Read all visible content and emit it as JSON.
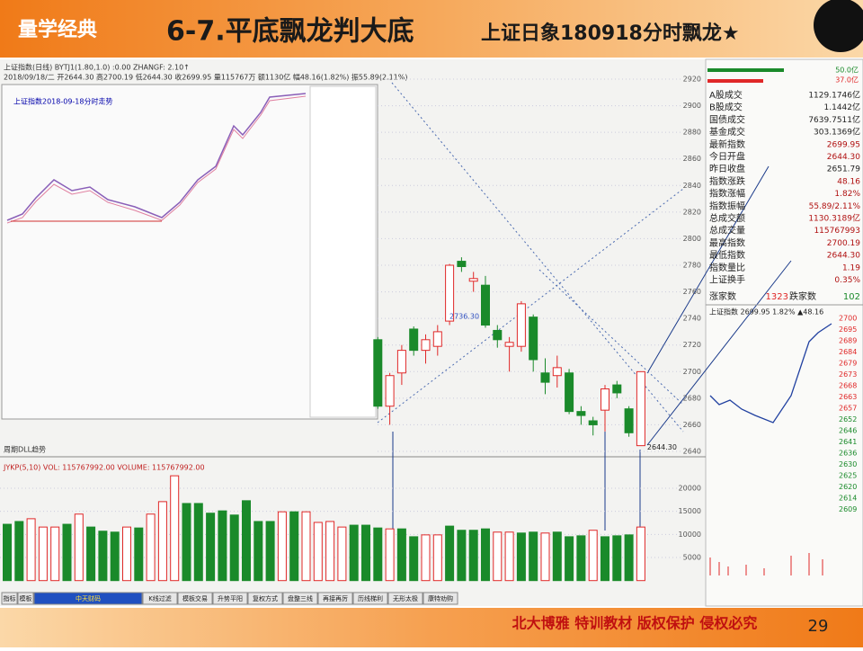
{
  "header": {
    "logo": "量学经典",
    "title": "6-7.平底飘龙判大底",
    "subtitle": "上证日象180918分时飘龙★"
  },
  "kline": {
    "info1": "上证指数(日线) BYTJ1(1.80,1.0) :0.00  ZHANGF: 2.10↑",
    "info2": "2018/09/18/二 开2644.30 高2700.19 低2644.30 收2699.95 量115767万 额1130亿 幅48.16(1.82%) 振55.89(2.11%)",
    "ylim": [
      2640,
      2920
    ],
    "yticks": [
      2640,
      2660,
      2680,
      2700,
      2720,
      2740,
      2760,
      2780,
      2800,
      2820,
      2840,
      2860,
      2880,
      2900,
      2920
    ],
    "candles": [
      {
        "open": 2724,
        "close": 2674,
        "high": 2726,
        "low": 2672
      },
      {
        "open": 2674,
        "close": 2697,
        "high": 2699,
        "low": 2660
      },
      {
        "open": 2699,
        "close": 2716,
        "high": 2720,
        "low": 2690
      },
      {
        "open": 2732,
        "close": 2716,
        "high": 2734,
        "low": 2712
      },
      {
        "open": 2716,
        "close": 2724,
        "high": 2728,
        "low": 2706
      },
      {
        "open": 2719,
        "close": 2730,
        "high": 2735,
        "low": 2712
      },
      {
        "open": 2738,
        "close": 2780,
        "high": 2781,
        "low": 2735
      },
      {
        "open": 2783,
        "close": 2779,
        "high": 2786,
        "low": 2775
      },
      {
        "open": 2768,
        "close": 2770,
        "high": 2775,
        "low": 2760
      },
      {
        "open": 2765,
        "close": 2735,
        "high": 2772,
        "low": 2733
      },
      {
        "open": 2731,
        "close": 2724,
        "high": 2735,
        "low": 2718
      },
      {
        "open": 2719,
        "close": 2722,
        "high": 2726,
        "low": 2700
      },
      {
        "open": 2719,
        "close": 2751,
        "high": 2753,
        "low": 2715
      },
      {
        "open": 2741,
        "close": 2709,
        "high": 2743,
        "low": 2700
      },
      {
        "open": 2699,
        "close": 2692,
        "high": 2710,
        "low": 2683
      },
      {
        "open": 2697,
        "close": 2703,
        "high": 2712,
        "low": 2688
      },
      {
        "open": 2699,
        "close": 2670,
        "high": 2702,
        "low": 2668
      },
      {
        "open": 2670,
        "close": 2667,
        "high": 2674,
        "low": 2660
      },
      {
        "open": 2663,
        "close": 2660,
        "high": 2666,
        "low": 2652
      },
      {
        "open": 2671,
        "close": 2687,
        "high": 2690,
        "low": 2655
      },
      {
        "open": 2690,
        "close": 2684,
        "high": 2693,
        "low": 2680
      },
      {
        "open": 2672,
        "close": 2654,
        "high": 2674,
        "low": 2651
      },
      {
        "open": 2644.3,
        "close": 2699.95,
        "high": 2700.19,
        "low": 2644.3
      }
    ],
    "annotations": [
      "2736.30",
      "2644.30"
    ],
    "ma_label": "周期DLL趋势"
  },
  "volume": {
    "info": "JYKP(5,10)  VOL: 115767992.00  VOLUME: 115767992.00",
    "ylim": [
      0,
      20000
    ],
    "yticks": [
      5000,
      10000,
      15000,
      20000
    ],
    "values": [
      12200,
      12800,
      13400,
      11600,
      11600,
      12200,
      14400,
      11600,
      10700,
      10500,
      11600,
      11400,
      14400,
      17100,
      22700,
      16700,
      16700,
      14600,
      15100,
      14200,
      17300,
      12800,
      12800,
      14900,
      14900,
      14900,
      12600,
      12800,
      11600,
      12000,
      12000,
      11400,
      11200,
      11200,
      9500,
      9900,
      9900,
      11800,
      10900,
      10900,
      11200,
      10500,
      10500,
      10300,
      10500,
      10300,
      10500,
      9500,
      9700,
      10900,
      9500,
      9700,
      9900,
      11600
    ],
    "rising": [
      false,
      false,
      true,
      true,
      true,
      false,
      true,
      false,
      false,
      false,
      true,
      false,
      true,
      true,
      true,
      false,
      false,
      false,
      false,
      false,
      false,
      false,
      false,
      true,
      false,
      true,
      true,
      true,
      true,
      false,
      false,
      false,
      true,
      false,
      false,
      true,
      true,
      false,
      false,
      false,
      false,
      true,
      true,
      false,
      false,
      true,
      false,
      false,
      false,
      true,
      false,
      false,
      false,
      true
    ]
  },
  "inset": {
    "title": "上证指数2018-09-18分时走势"
  },
  "panel": {
    "top": [
      "50.0亿",
      "37.0亿"
    ],
    "rows": [
      [
        "A股成交",
        "1129.1746亿"
      ],
      [
        "B股成交",
        "1.1442亿"
      ],
      [
        "国债成交",
        "7639.7511亿"
      ],
      [
        "基金成交",
        "303.1369亿"
      ],
      [
        "最新指数",
        "2699.95"
      ],
      [
        "今日开盘",
        "2644.30"
      ],
      [
        "昨日收盘",
        "2651.79"
      ],
      [
        "指数涨跌",
        "48.16"
      ],
      [
        "指数涨幅",
        "1.82%"
      ],
      [
        "指数振幅",
        "55.89/2.11%"
      ],
      [
        "总成交额",
        "1130.3189亿"
      ],
      [
        "总成交量",
        "115767993"
      ],
      [
        "最高指数",
        "2700.19"
      ],
      [
        "最低指数",
        "2644.30"
      ],
      [
        "指数量比",
        "1.19"
      ],
      [
        "上证换手",
        "0.35%"
      ]
    ],
    "updown": [
      "涨家数",
      "1323",
      "跌家数",
      "102"
    ],
    "mini_title": "上证指数  2699.95  1.82%  ▲48.16",
    "mini_ticks": [
      "2700",
      "2695",
      "2689",
      "2684",
      "2679",
      "2673",
      "2668",
      "2663",
      "2657",
      "2652",
      "2646",
      "2641",
      "2636",
      "2630",
      "2625",
      "2620",
      "2614",
      "2609"
    ]
  },
  "tabs": [
    "指标",
    "模板",
    "中天财码",
    "K线过滤",
    "模板交易",
    "升势平阳",
    "复权方式",
    "盘整三线",
    "再接再厉",
    "历线梯利",
    "无形太极",
    "康特劝购"
  ],
  "footer": {
    "text": "北大博雅 特训教材 版权保护 侵权必究",
    "page": "29"
  }
}
